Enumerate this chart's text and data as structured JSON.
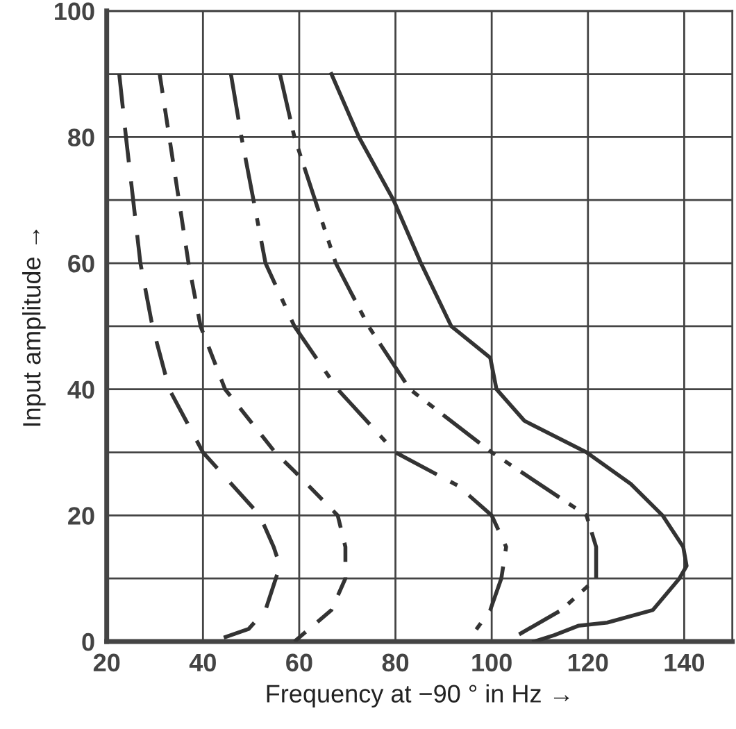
{
  "chart_data": {
    "type": "line",
    "xlabel": "Frequency at −90 ° in Hz →",
    "ylabel": "Input amplitude →",
    "xlim": [
      20,
      150
    ],
    "xticks": [
      20,
      40,
      60,
      80,
      100,
      120,
      140
    ],
    "ylim": [
      0,
      100
    ],
    "yticks": [
      0,
      {
        "value": 10,
        "label": null
      },
      20,
      {
        "value": 30,
        "label": null
      },
      40,
      {
        "value": 50,
        "label": null
      },
      60,
      {
        "value": 70,
        "label": null
      },
      80,
      {
        "value": 90,
        "label": null
      },
      100
    ],
    "grid": true,
    "marker": "none",
    "series": [
      {
        "color": "#333333",
        "line_style": "dashed",
        "x": [
          22.6,
          24,
          27,
          29.5,
          33,
          40,
          51.8,
          54.7,
          56,
          53,
          49.5,
          42
        ],
        "values": [
          90,
          80,
          60,
          50,
          40,
          30,
          20,
          15,
          12,
          5,
          2,
          0
        ]
      },
      {
        "color": "#333333",
        "line_style": "dotted",
        "x": [
          31,
          33,
          37,
          39.5,
          44.6,
          55,
          59,
          68,
          69.6,
          69.6,
          66.7,
          59
        ],
        "values": [
          90,
          80,
          60,
          50,
          40,
          30,
          27,
          20,
          15,
          10,
          5,
          0
        ]
      },
      {
        "color": "#333333",
        "line_style": "dashdot",
        "x": [
          45.8,
          48,
          53,
          59,
          68,
          80,
          93,
          100,
          103,
          102,
          99.7,
          95
        ],
        "values": [
          90,
          80,
          60,
          50,
          40,
          30,
          24.7,
          20,
          15,
          10,
          5,
          0
        ]
      },
      {
        "color": "#333333",
        "line_style": "dashdotdot",
        "x": [
          56,
          59,
          67.6,
          74.4,
          83,
          100,
          119.7,
          121.7,
          121.7,
          114.5,
          105.4
        ],
        "values": [
          90,
          80,
          60,
          50,
          40,
          30,
          20,
          15,
          10,
          5,
          1
        ]
      },
      {
        "color": "#333333",
        "line_style": "solid",
        "x": [
          66.7,
          72.4,
          79.6,
          85.3,
          91.6,
          99.7,
          101,
          106.8,
          119.7,
          128.9,
          135.5,
          139.8,
          140.5,
          139,
          133.5,
          124,
          118,
          113,
          108.8
        ],
        "values": [
          90,
          80,
          70,
          60,
          50,
          45,
          40,
          35,
          30,
          25,
          20,
          15,
          12,
          10,
          5,
          3,
          2.5,
          1,
          0
        ]
      }
    ]
  }
}
